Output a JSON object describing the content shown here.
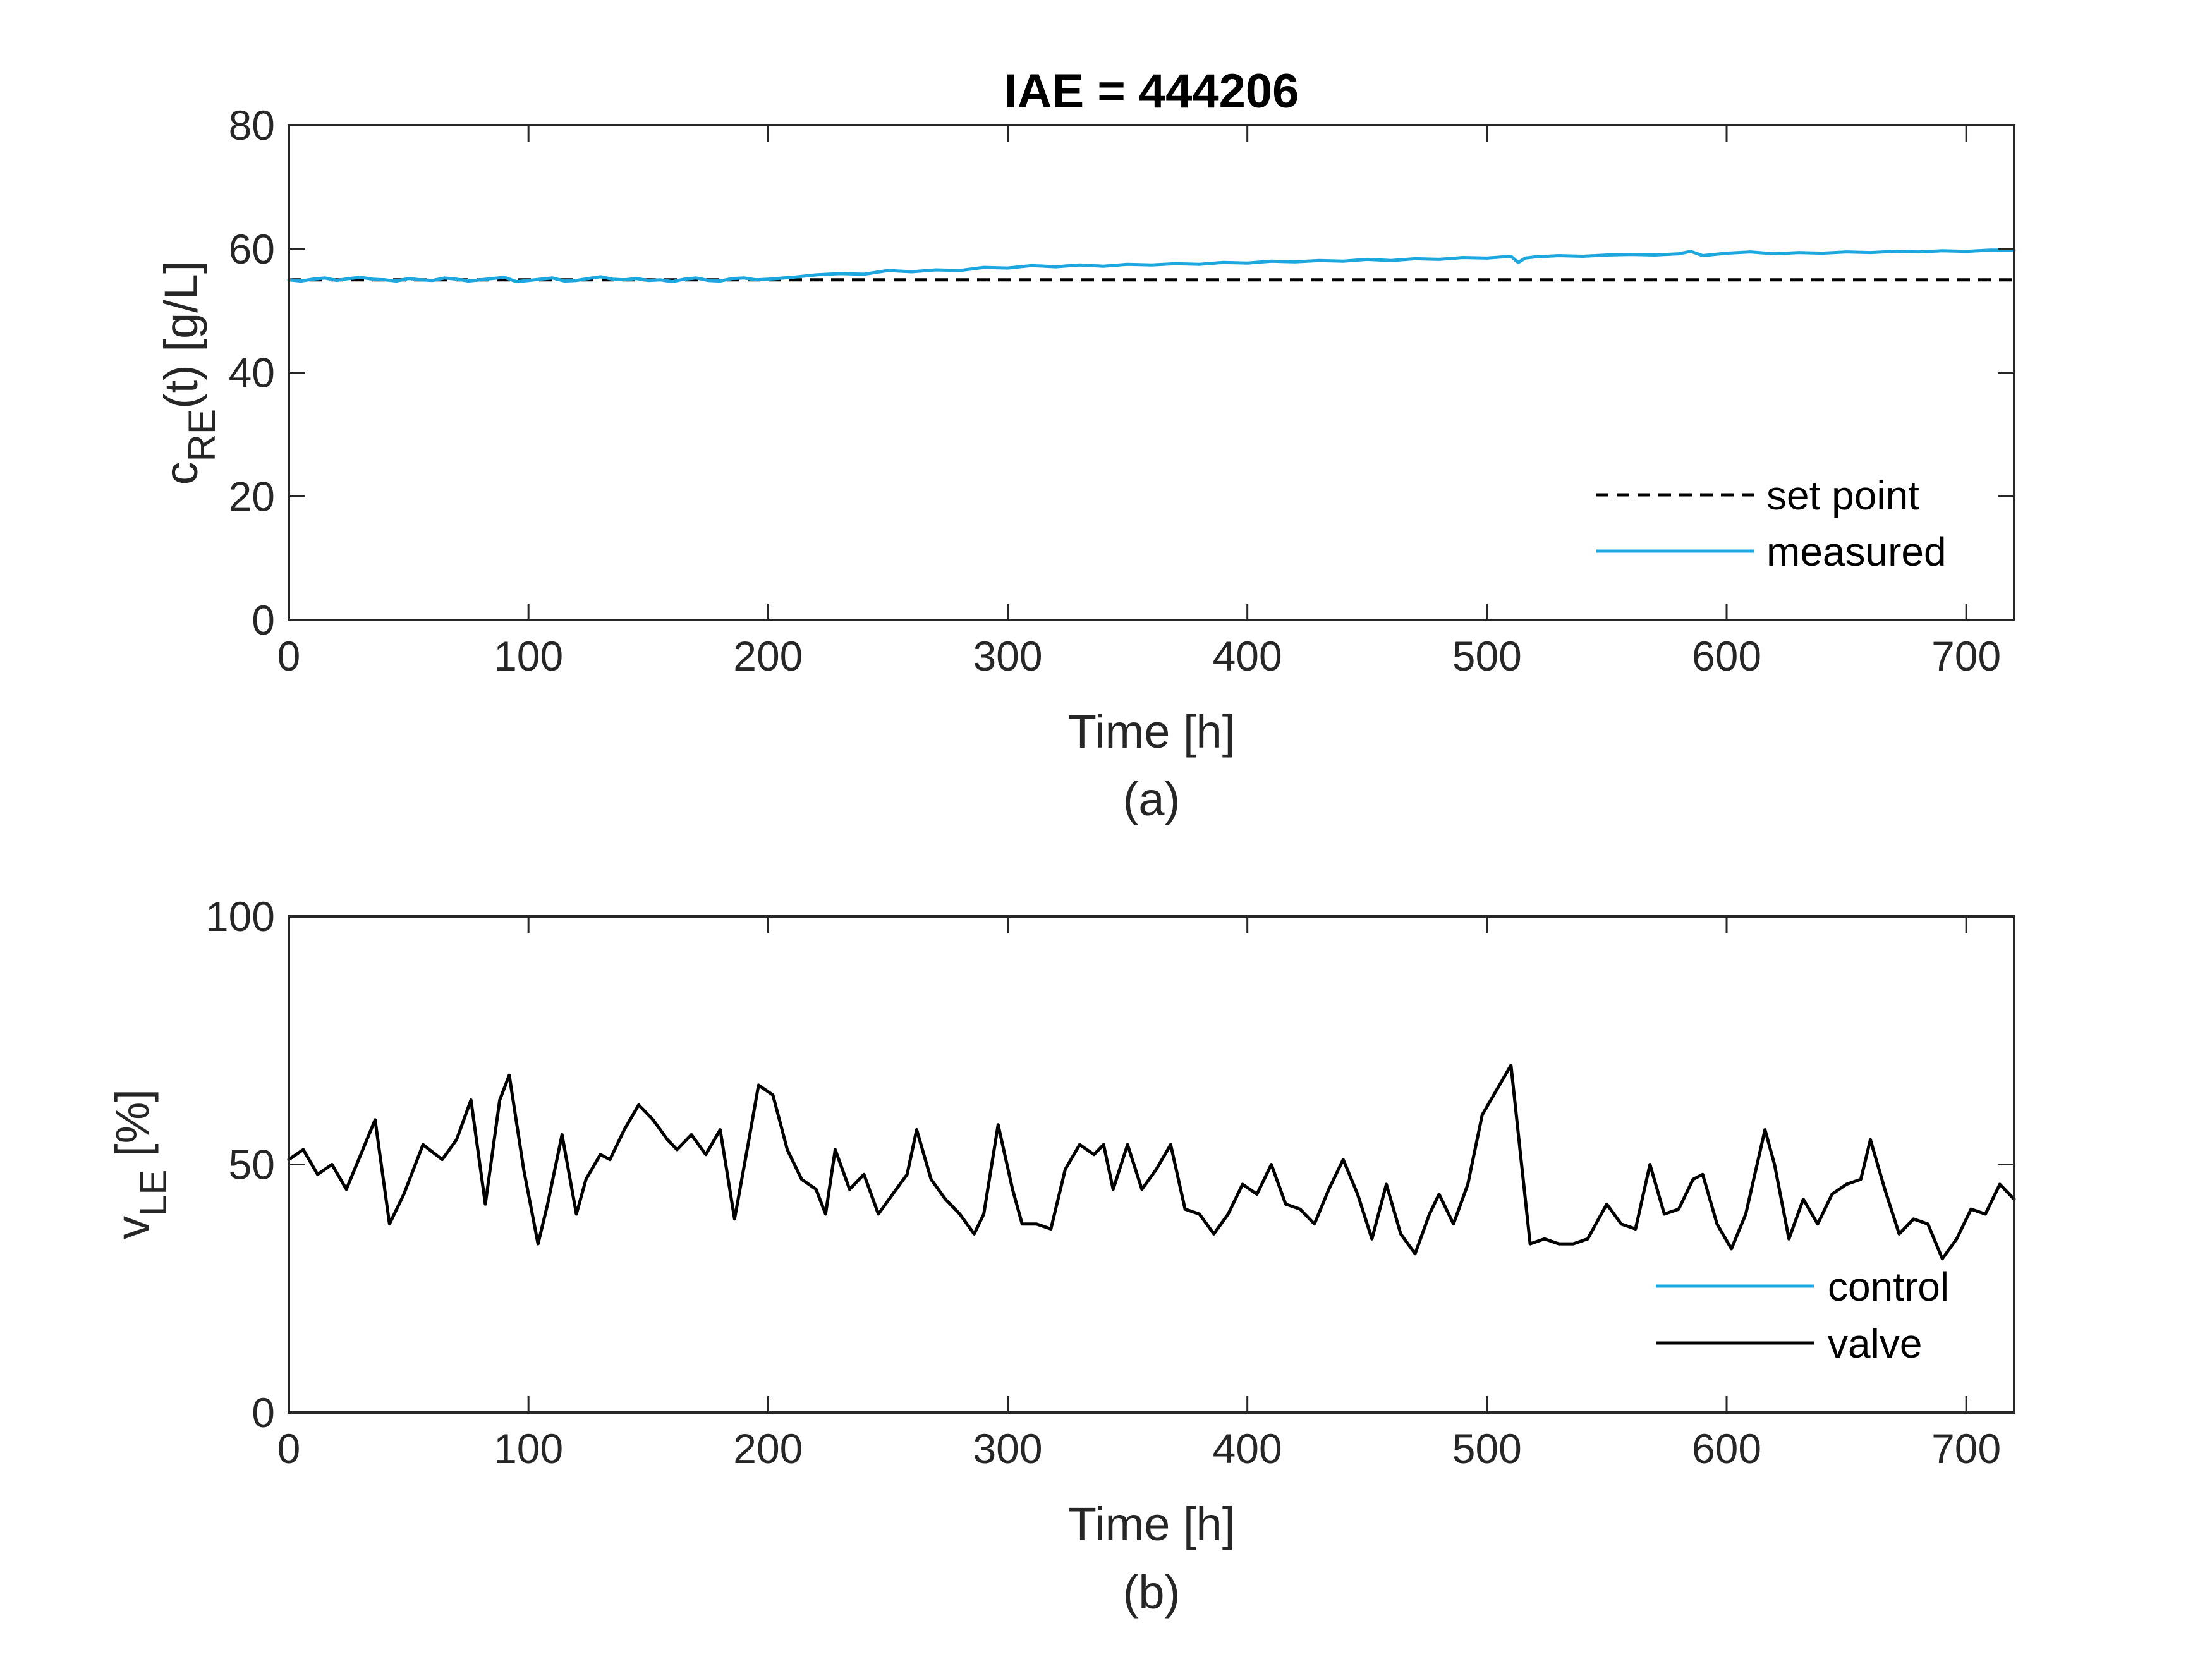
{
  "colors": {
    "measured": "#1CA7DF",
    "control": "#1CA7DF",
    "valve": "#000000",
    "setpoint": "#000000",
    "axes": "#262626"
  },
  "chart_data": [
    {
      "type": "line",
      "title": "IAE = 444206",
      "xlabel": "Time [h]",
      "ylabel_main": "c",
      "ylabel_sub": "RE",
      "ylabel_rest": "(t) [g/L]",
      "caption": "(a)",
      "xlim": [
        0,
        720
      ],
      "ylim": [
        0,
        80
      ],
      "xticks": [
        0,
        100,
        200,
        300,
        400,
        500,
        600,
        700
      ],
      "yticks": [
        0,
        20,
        40,
        60,
        80
      ],
      "grid": false,
      "legend_position": "bottom-right",
      "series": [
        {
          "name": "set point",
          "style": "dashed",
          "x": [
            0,
            720
          ],
          "y": [
            55,
            55
          ]
        },
        {
          "name": "measured",
          "style": "solid",
          "x": [
            0,
            5,
            10,
            15,
            20,
            25,
            30,
            35,
            40,
            45,
            50,
            55,
            60,
            65,
            70,
            75,
            80,
            85,
            90,
            95,
            100,
            105,
            110,
            115,
            120,
            125,
            130,
            135,
            140,
            145,
            150,
            155,
            160,
            165,
            170,
            175,
            180,
            185,
            190,
            195,
            200,
            210,
            220,
            230,
            240,
            250,
            260,
            270,
            280,
            290,
            300,
            310,
            320,
            330,
            340,
            350,
            360,
            370,
            380,
            390,
            400,
            410,
            420,
            430,
            440,
            450,
            460,
            470,
            480,
            490,
            500,
            510,
            513,
            516,
            520,
            530,
            540,
            550,
            560,
            570,
            580,
            585,
            590,
            600,
            610,
            620,
            630,
            640,
            650,
            660,
            670,
            680,
            690,
            700,
            710,
            720
          ],
          "y": [
            55,
            54.8,
            55.1,
            55.3,
            54.9,
            55.2,
            55.4,
            55.1,
            55.0,
            54.8,
            55.2,
            55.0,
            54.9,
            55.3,
            55.1,
            54.8,
            55.0,
            55.2,
            55.4,
            54.7,
            54.9,
            55.1,
            55.3,
            54.8,
            54.9,
            55.2,
            55.5,
            55.1,
            55.0,
            55.2,
            54.9,
            55.0,
            54.7,
            55.1,
            55.3,
            54.9,
            54.8,
            55.2,
            55.3,
            55.0,
            55.1,
            55.4,
            55.8,
            56.0,
            55.9,
            56.5,
            56.3,
            56.6,
            56.5,
            57.0,
            56.9,
            57.3,
            57.1,
            57.4,
            57.2,
            57.5,
            57.4,
            57.6,
            57.5,
            57.8,
            57.7,
            58.0,
            57.9,
            58.1,
            58.0,
            58.3,
            58.1,
            58.4,
            58.3,
            58.6,
            58.5,
            58.8,
            57.8,
            58.5,
            58.7,
            58.9,
            58.8,
            59.0,
            59.1,
            59.0,
            59.2,
            59.6,
            58.9,
            59.3,
            59.5,
            59.2,
            59.4,
            59.3,
            59.5,
            59.4,
            59.6,
            59.5,
            59.7,
            59.6,
            59.8,
            59.8
          ]
        }
      ]
    },
    {
      "type": "line",
      "title": "",
      "xlabel": "Time [h]",
      "ylabel_main": "v",
      "ylabel_sub": "LE",
      "ylabel_rest": " [%]",
      "caption": "(b)",
      "xlim": [
        0,
        720
      ],
      "ylim": [
        0,
        100
      ],
      "xticks": [
        0,
        100,
        200,
        300,
        400,
        500,
        600,
        700
      ],
      "yticks": [
        0,
        50,
        100
      ],
      "grid": false,
      "legend_position": "bottom-right",
      "series": [
        {
          "name": "control",
          "style": "solid",
          "x": [],
          "y": []
        },
        {
          "name": "valve",
          "style": "solid",
          "x": [
            0,
            6,
            12,
            18,
            24,
            30,
            36,
            42,
            48,
            56,
            64,
            70,
            76,
            82,
            88,
            92,
            98,
            104,
            108,
            114,
            120,
            124,
            130,
            134,
            140,
            146,
            152,
            158,
            162,
            168,
            174,
            180,
            186,
            192,
            196,
            202,
            208,
            214,
            220,
            224,
            228,
            234,
            240,
            246,
            252,
            258,
            262,
            268,
            274,
            280,
            286,
            290,
            296,
            302,
            306,
            312,
            318,
            324,
            330,
            336,
            340,
            344,
            350,
            356,
            362,
            368,
            374,
            380,
            386,
            392,
            398,
            404,
            410,
            416,
            422,
            428,
            434,
            440,
            446,
            452,
            458,
            464,
            470,
            476,
            480,
            486,
            492,
            498,
            504,
            510,
            514,
            518,
            524,
            530,
            536,
            542,
            550,
            556,
            562,
            568,
            574,
            580,
            586,
            590,
            596,
            602,
            608,
            616,
            620,
            626,
            632,
            638,
            644,
            650,
            656,
            660,
            666,
            672,
            678,
            684,
            690,
            696,
            702,
            708,
            714,
            720
          ],
          "y": [
            51,
            53,
            48,
            50,
            45,
            52,
            59,
            38,
            44,
            54,
            51,
            55,
            63,
            42,
            63,
            68,
            49,
            34,
            42,
            56,
            40,
            47,
            52,
            51,
            57,
            62,
            59,
            55,
            53,
            56,
            52,
            57,
            39,
            55,
            66,
            64,
            53,
            47,
            45,
            40,
            53,
            45,
            48,
            40,
            44,
            48,
            57,
            47,
            43,
            40,
            36,
            40,
            58,
            45,
            38,
            38,
            37,
            49,
            54,
            52,
            54,
            45,
            54,
            45,
            49,
            54,
            41,
            40,
            36,
            40,
            46,
            44,
            50,
            42,
            41,
            38,
            45,
            51,
            44,
            35,
            46,
            36,
            32,
            40,
            44,
            38,
            46,
            60,
            65,
            70,
            52,
            34,
            35,
            34,
            34,
            35,
            42,
            38,
            37,
            50,
            40,
            41,
            47,
            48,
            38,
            33,
            40,
            57,
            50,
            35,
            43,
            38,
            44,
            46,
            47,
            55,
            45,
            36,
            39,
            38,
            31,
            35,
            41,
            40,
            46,
            43
          ]
        }
      ]
    }
  ]
}
